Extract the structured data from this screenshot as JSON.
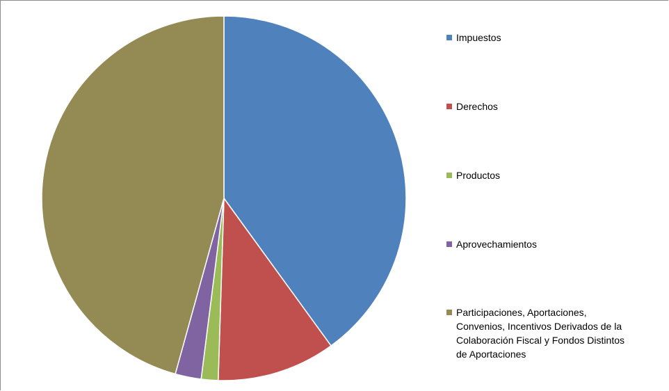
{
  "chart_data": {
    "type": "pie",
    "title": "",
    "slices": [
      {
        "label": "Impuestos",
        "value": 40.0,
        "color": "#4F81BD"
      },
      {
        "label": "Derechos",
        "value": 10.5,
        "color": "#C0504D"
      },
      {
        "label": "Productos",
        "value": 1.5,
        "color": "#9BBB59"
      },
      {
        "label": "Aprovechamientos",
        "value": 2.3,
        "color": "#8064A2"
      },
      {
        "label": "Participaciones, Aportaciones, Convenios, Incentivos Derivados de la Colaboración Fiscal y Fondos Distintos de Aportaciones",
        "value": 45.7,
        "color": "#948A54"
      }
    ],
    "legend_position": "right"
  },
  "legend": {
    "items": [
      {
        "lines": [
          "Impuestos"
        ]
      },
      {
        "lines": [
          "Derechos"
        ]
      },
      {
        "lines": [
          "Productos"
        ]
      },
      {
        "lines": [
          "Aprovechamientos"
        ]
      },
      {
        "lines": [
          "Participaciones, Aportaciones,",
          "Convenios, Incentivos Derivados de la",
          "Colaboración Fiscal y Fondos Distintos",
          "de Aportaciones"
        ]
      }
    ]
  }
}
